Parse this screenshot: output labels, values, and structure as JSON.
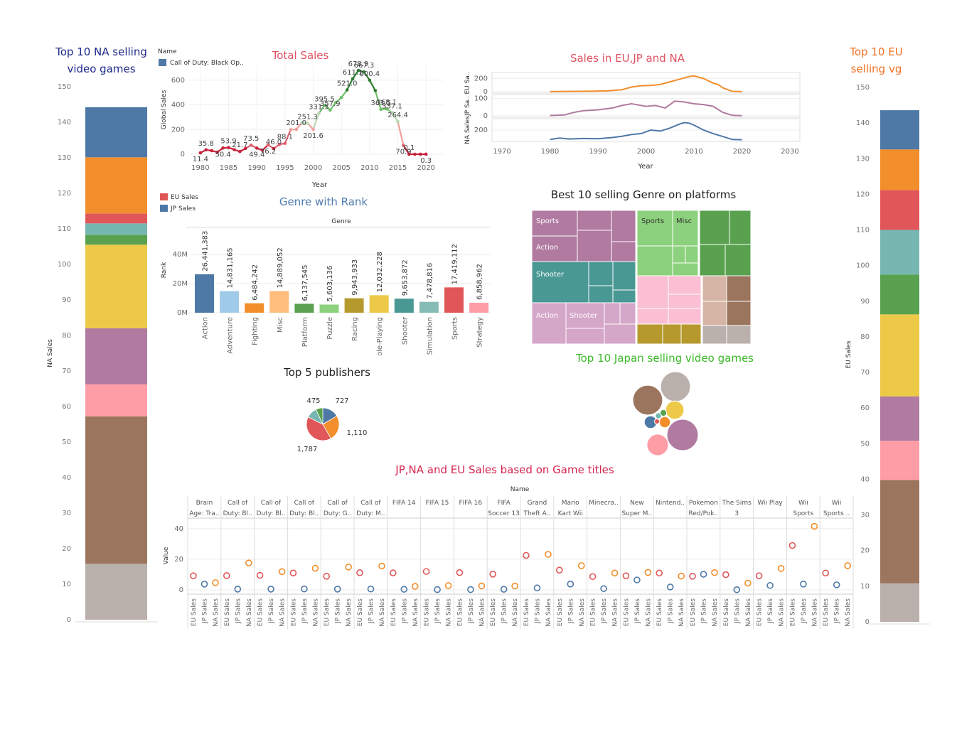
{
  "colors": {
    "blue": "#4e79a7",
    "orange": "#f28e2b",
    "red": "#e15759",
    "teal": "#76b7b2",
    "green": "#59a14f",
    "yellow": "#edc948",
    "purple": "#b07aa1",
    "pink": "#ff9da7",
    "brown": "#9c755f",
    "gray": "#bab0ac",
    "light_blue": "#a0cbe8",
    "light_orange": "#ffbe7d",
    "light_green": "#8cd17d",
    "olive": "#b6992d",
    "light_teal": "#86bcb6",
    "dark_teal": "#499894",
    "light_pink": "#fabfd2",
    "light_purple": "#d4a6c8",
    "light_brown": "#d7b5a6",
    "title_navy": "#1f2a8c",
    "title_red": "#e05262",
    "title_orange": "#f07020",
    "title_steel": "#4f7ab0",
    "title_green": "#3db82a",
    "title_crimson": "#d6254f",
    "title_dark": "#222222"
  },
  "na_stack": {
    "title": "Top 10 NA selling video games",
    "title_lines": [
      "Top 10 NA selling",
      "video games"
    ],
    "ylabel": "NA Sales",
    "ticks": [
      "0",
      "10",
      "20",
      "30",
      "40",
      "50",
      "60",
      "70",
      "80",
      "90",
      "100",
      "110",
      "120",
      "130",
      "140",
      "150"
    ],
    "tick_values": [
      0,
      10,
      20,
      30,
      40,
      50,
      60,
      70,
      80,
      90,
      100,
      110,
      120,
      130,
      140,
      150
    ],
    "ymax": 150,
    "segments": [
      {
        "value": 15.75,
        "color": "#bab0ac"
      },
      {
        "value": 41.49,
        "color": "#9c755f"
      },
      {
        "value": 9.0,
        "color": "#ff9da7"
      },
      {
        "value": 15.8,
        "color": "#b07aa1"
      },
      {
        "value": 23.5,
        "color": "#edc948"
      },
      {
        "value": 2.8,
        "color": "#59a14f"
      },
      {
        "value": 3.2,
        "color": "#76b7b2"
      },
      {
        "value": 2.8,
        "color": "#e15759"
      },
      {
        "value": 15.8,
        "color": "#f28e2b"
      },
      {
        "value": 14.1,
        "color": "#4e79a7"
      }
    ]
  },
  "eu_stack": {
    "title": "Top 10 EU selling vg",
    "title_lines": [
      "Top 10 EU",
      "selling vg"
    ],
    "ylabel": "EU Sales",
    "ticks": [
      "0",
      "10",
      "20",
      "30",
      "40",
      "50",
      "60",
      "70",
      "80",
      "90",
      "100",
      "110",
      "120",
      "130",
      "140",
      "150"
    ],
    "tick_values": [
      0,
      10,
      20,
      30,
      40,
      50,
      60,
      70,
      80,
      90,
      100,
      110,
      120,
      130,
      140,
      150
    ],
    "ymax": 150,
    "segments": [
      {
        "value": 10.8,
        "color": "#bab0ac"
      },
      {
        "value": 29.0,
        "color": "#9c755f"
      },
      {
        "value": 11.0,
        "color": "#ff9da7"
      },
      {
        "value": 12.5,
        "color": "#b07aa1"
      },
      {
        "value": 23.0,
        "color": "#edc948"
      },
      {
        "value": 11.2,
        "color": "#59a14f"
      },
      {
        "value": 12.5,
        "color": "#76b7b2"
      },
      {
        "value": 11.2,
        "color": "#e15759"
      },
      {
        "value": 11.4,
        "color": "#f28e2b"
      },
      {
        "value": 11.0,
        "color": "#4e79a7"
      }
    ]
  },
  "total_sales": {
    "title": "Total Sales",
    "legend_title": "Name",
    "legend_item": "Call of Duty: Black Op..",
    "xlabel": "Year",
    "ylabel": "Global Sales",
    "yticks": [
      0,
      200,
      400,
      600
    ],
    "xticks": [
      1980,
      1985,
      1990,
      1995,
      2000,
      2005,
      2010,
      2015,
      2020
    ],
    "years": [
      1980,
      1981,
      1982,
      1983,
      1984,
      1985,
      1986,
      1987,
      1988,
      1989,
      1990,
      1991,
      1992,
      1993,
      1994,
      1995,
      1996,
      1997,
      1998,
      1999,
      2000,
      2001,
      2002,
      2003,
      2004,
      2005,
      2006,
      2007,
      2008,
      2009,
      2010,
      2011,
      2012,
      2013,
      2014,
      2015,
      2016,
      2017,
      2018,
      2019,
      2020
    ],
    "values": [
      11.4,
      35.8,
      28.9,
      16.8,
      50.4,
      53.9,
      37.1,
      21.7,
      47.2,
      73.5,
      49.4,
      32.2,
      76.2,
      46.0,
      79.2,
      88.1,
      199.2,
      201.0,
      256.5,
      251.3,
      201.6,
      331.5,
      395.5,
      357.9,
      419.3,
      459.9,
      521.0,
      611.1,
      678.9,
      667.3,
      600.4,
      515.9,
      363.5,
      368.1,
      337.1,
      264.4,
      70.9,
      0.1,
      0,
      0,
      0.3
    ],
    "labels": [
      {
        "year": 1980,
        "text": "11.4"
      },
      {
        "year": 1981,
        "text": "35.8"
      },
      {
        "year": 1984,
        "text": "50.4"
      },
      {
        "year": 1985,
        "text": "53.9"
      },
      {
        "year": 1987,
        "text": "21.7"
      },
      {
        "year": 1989,
        "text": "73.5"
      },
      {
        "year": 1990,
        "text": "49.4"
      },
      {
        "year": 1992,
        "text": "76.2"
      },
      {
        "year": 1993,
        "text": "46.0"
      },
      {
        "year": 1995,
        "text": "88.1"
      },
      {
        "year": 1997,
        "text": "201.0"
      },
      {
        "year": 1999,
        "text": "251.3"
      },
      {
        "year": 2000,
        "text": "201.6"
      },
      {
        "year": 2001,
        "text": "331.5"
      },
      {
        "year": 2002,
        "text": "395.5"
      },
      {
        "year": 2003,
        "text": "357.9"
      },
      {
        "year": 2006,
        "text": "521.0"
      },
      {
        "year": 2007,
        "text": "611.1"
      },
      {
        "year": 2008,
        "text": "678.9"
      },
      {
        "year": 2009,
        "text": "667.3"
      },
      {
        "year": 2010,
        "text": "600.4"
      },
      {
        "year": 2012,
        "text": "363.5"
      },
      {
        "year": 2013,
        "text": "368.1"
      },
      {
        "year": 2014,
        "text": "337.1"
      },
      {
        "year": 2015,
        "text": "264.4"
      },
      {
        "year": 2016,
        "text": "70.9"
      },
      {
        "year": 2017,
        "text": "0.1"
      },
      {
        "year": 2020,
        "text": "0.3"
      }
    ]
  },
  "region_sales": {
    "title": "Sales in EU,JP and NA",
    "xlabel": "Year",
    "xticks": [
      1970,
      1980,
      1990,
      2000,
      2010,
      2020,
      2030
    ],
    "panels": [
      {
        "label": "EU Sa..",
        "color": "#f28e2b",
        "yticks": [
          "200",
          "0"
        ],
        "tick_values": [
          200,
          0
        ],
        "ymax": 270,
        "years": [
          1980,
          1983,
          1986,
          1989,
          1992,
          1995,
          1997,
          1999,
          2001,
          2003,
          2005,
          2007,
          2009,
          2010,
          2012,
          2014,
          2015,
          2016,
          2018,
          2020
        ],
        "values": [
          2,
          4,
          6,
          8,
          12,
          30,
          70,
          90,
          95,
          110,
          150,
          190,
          230,
          240,
          200,
          130,
          110,
          60,
          5,
          2
        ]
      },
      {
        "label": "JP Sa..",
        "color": "#b07aa1",
        "yticks": [
          "100",
          "0"
        ],
        "tick_values": [
          100,
          0
        ],
        "ymax": 115,
        "years": [
          1980,
          1983,
          1985,
          1987,
          1990,
          1993,
          1995,
          1997,
          2000,
          2002,
          2004,
          2006,
          2008,
          2010,
          2012,
          2014,
          2016,
          2018,
          2020
        ],
        "values": [
          2,
          5,
          20,
          30,
          35,
          45,
          60,
          70,
          55,
          60,
          45,
          85,
          80,
          70,
          65,
          55,
          20,
          3,
          1
        ]
      },
      {
        "label": "NA Sales",
        "color": "#4e79a7",
        "yticks": [
          "200"
        ],
        "tick_values": [
          200
        ],
        "ymax": 400,
        "years": [
          1980,
          1982,
          1984,
          1987,
          1990,
          1993,
          1995,
          1997,
          1999,
          2001,
          2003,
          2005,
          2007,
          2008,
          2009,
          2010,
          2012,
          2014,
          2016,
          2018,
          2020
        ],
        "values": [
          10,
          40,
          20,
          30,
          25,
          50,
          75,
          110,
          130,
          200,
          180,
          240,
          320,
          350,
          340,
          300,
          200,
          130,
          70,
          10,
          5
        ]
      }
    ]
  },
  "genre_rank": {
    "title": "Genre with Rank",
    "header": "Genre",
    "ylabel": "Rank",
    "legend": [
      {
        "label": "EU Sales",
        "color": "#e15759"
      },
      {
        "label": "JP Sales",
        "color": "#4e79a7"
      }
    ],
    "yticks": [
      "0M",
      "20M",
      "40M"
    ],
    "tick_values": [
      0,
      20000000,
      40000000
    ],
    "ymax": 43000000,
    "categories": [
      "Action",
      "Adventure",
      "Fighting",
      "Misc",
      "Platform",
      "Puzzle",
      "Racing",
      "Role-Playing",
      "Shooter",
      "Simulation",
      "Sports",
      "Strategy"
    ],
    "values": [
      26441383,
      14831165,
      6484242,
      14889052,
      6137545,
      5603136,
      9943933,
      12032228,
      9653872,
      7478816,
      17419112,
      6858962
    ],
    "labels": [
      "26,441,383",
      "14,831,165",
      "6,484,242",
      "14,889,052",
      "6,137,545",
      "5,603,136",
      "9,943,933",
      "12,032,228",
      "9,653,872",
      "7,478,816",
      "17,419,112",
      "6,858,962"
    ],
    "colors": [
      "#4e79a7",
      "#a0cbe8",
      "#f28e2b",
      "#ffbe7d",
      "#59a14f",
      "#8cd17d",
      "#b6992d",
      "#edc948",
      "#499894",
      "#86bcb6",
      "#e15759",
      "#ff9da7"
    ]
  },
  "treemap": {
    "title": "Best 10 selling Genre on platforms",
    "labels": [
      "Sports",
      "Action",
      "Shooter",
      "Action",
      "Shooter",
      "Sports",
      "Misc"
    ]
  },
  "publishers": {
    "title": "Top 5 publishers",
    "values": [
      727,
      1110,
      1787,
      475,
      300
    ],
    "labels": [
      "727",
      "1,110",
      "1,787",
      "475",
      ""
    ],
    "colors": [
      "#4e79a7",
      "#f28e2b",
      "#e15759",
      "#76b7b2",
      "#59a14f"
    ]
  },
  "japan": {
    "title": "Top 10 Japan selling video games",
    "bubbles": [
      {
        "value": 10.22,
        "color": "#bab0ac"
      },
      {
        "value": 10.18,
        "color": "#9c755f"
      },
      {
        "value": 11.28,
        "color": "#b07aa1"
      },
      {
        "value": 3.9,
        "color": "#edc948"
      },
      {
        "value": 5.3,
        "color": "#ff9da7"
      },
      {
        "value": 1.8,
        "color": "#4e79a7"
      },
      {
        "value": 1.4,
        "color": "#f28e2b"
      },
      {
        "value": 0.5,
        "color": "#59a14f"
      },
      {
        "value": 0.4,
        "color": "#76b7b2"
      },
      {
        "value": 0.3,
        "color": "#e15759"
      }
    ]
  },
  "game_titles": {
    "title": "JP,NA and EU Sales based on Game titles",
    "header": "Name",
    "ylabel": "Value",
    "yticks": [
      0,
      20,
      40
    ],
    "ymax": 45,
    "measures": [
      "EU Sales",
      "JP Sales",
      "NA Sales"
    ],
    "measure_colors": [
      "#e15759",
      "#4e79a7",
      "#f28e2b"
    ],
    "games": [
      {
        "name": [
          "Brain",
          "Age: Tra.."
        ],
        "values": [
          9.2,
          3.8,
          4.7
        ]
      },
      {
        "name": [
          "Call of",
          "Duty: Bl.."
        ],
        "values": [
          9.3,
          0.5,
          17.6
        ]
      },
      {
        "name": [
          "Call of",
          "Duty: Bl.."
        ],
        "values": [
          9.5,
          0.5,
          11.9
        ]
      },
      {
        "name": [
          "Call of",
          "Duty: Bl.."
        ],
        "values": [
          11.0,
          0.6,
          14.1
        ]
      },
      {
        "name": [
          "Call of",
          "Duty: G.."
        ],
        "values": [
          8.9,
          0.5,
          14.9
        ]
      },
      {
        "name": [
          "Call of",
          "Duty: M.."
        ],
        "values": [
          11.2,
          0.6,
          15.6
        ]
      },
      {
        "name": [
          "FIFA 14"
        ],
        "values": [
          11.1,
          0.4,
          2.3
        ]
      },
      {
        "name": [
          "FIFA 15"
        ],
        "values": [
          12.0,
          0.2,
          2.8
        ]
      },
      {
        "name": [
          "FIFA 16"
        ],
        "values": [
          11.3,
          0.2,
          2.6
        ]
      },
      {
        "name": [
          "FIFA",
          "Soccer 13"
        ],
        "values": [
          10.3,
          0.4,
          2.5
        ]
      },
      {
        "name": [
          "Grand",
          "Theft A.."
        ],
        "values": [
          22.5,
          1.3,
          23.2
        ]
      },
      {
        "name": [
          "Mario",
          "Kart Wii"
        ],
        "values": [
          12.9,
          3.8,
          15.8
        ]
      },
      {
        "name": [
          "Minecra.."
        ],
        "values": [
          8.7,
          0.8,
          11.0
        ]
      },
      {
        "name": [
          "New",
          "Super M.."
        ],
        "values": [
          9.2,
          6.5,
          11.4
        ]
      },
      {
        "name": [
          "Nintend.."
        ],
        "values": [
          11.0,
          1.9,
          9.0
        ]
      },
      {
        "name": [
          "Pokemon",
          "Red/Pok.."
        ],
        "values": [
          8.9,
          10.2,
          11.3
        ]
      },
      {
        "name": [
          "The Sims",
          "3"
        ],
        "values": [
          9.9,
          0.1,
          4.4
        ]
      },
      {
        "name": [
          "Wii Play"
        ],
        "values": [
          9.2,
          2.9,
          14.0
        ]
      },
      {
        "name": [
          "Wii",
          "Sports"
        ],
        "values": [
          29.0,
          3.8,
          41.5
        ]
      },
      {
        "name": [
          "Wii",
          "Sports .."
        ],
        "values": [
          11.0,
          3.3,
          15.8
        ]
      }
    ]
  }
}
